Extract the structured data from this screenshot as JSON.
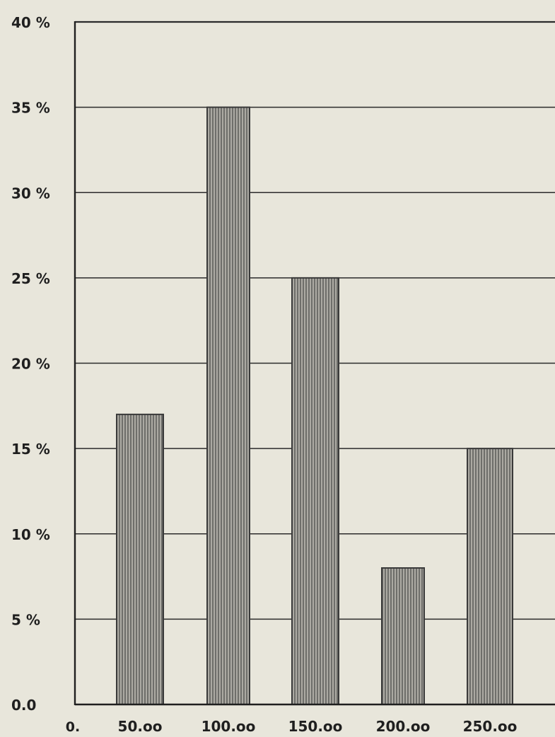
{
  "chart_data": {
    "type": "bar",
    "title": "",
    "xlabel": "",
    "ylabel": "",
    "categories": [
      "50.oo",
      "100.oo",
      "150.oo",
      "200.oo",
      "250.oo"
    ],
    "values": [
      17,
      35,
      25,
      8,
      15
    ],
    "ylim": [
      0,
      40
    ],
    "y_tick_labels": [
      "0.0",
      "5 %",
      "10 %",
      "15 %",
      "20 %",
      "25 %",
      "30 %",
      "35 %",
      "40 %"
    ],
    "x_origin_label": "0.",
    "grid": true,
    "bar_color": "#3a3a3a",
    "bar_fill": "#cfcdc4",
    "grid_color": "#2b2b2b",
    "paper_color": "#e8e6db"
  }
}
